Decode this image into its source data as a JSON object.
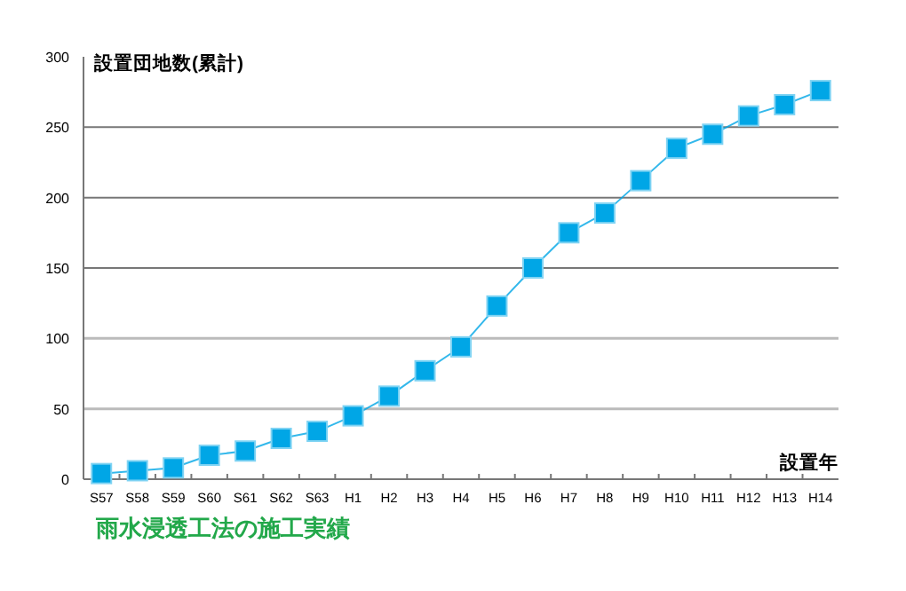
{
  "chart_data": {
    "type": "line",
    "title": "雨水浸透工法の施工実績",
    "xlabel": "設置年",
    "ylabel": "設置団地数(累計)",
    "categories": [
      "S57",
      "S58",
      "S59",
      "S60",
      "S61",
      "S62",
      "S63",
      "H1",
      "H2",
      "H3",
      "H4",
      "H5",
      "H6",
      "H7",
      "H8",
      "H9",
      "H10",
      "H11",
      "H12",
      "H13",
      "H14"
    ],
    "series": [
      {
        "color": "#00a6e6",
        "values": [
          4,
          6,
          8,
          17,
          20,
          29,
          34,
          45,
          59,
          77,
          94,
          123,
          150,
          175,
          189,
          212,
          235,
          245,
          258,
          266,
          276
        ]
      }
    ],
    "ylim": [
      0,
      300
    ],
    "yticks": [
      0,
      50,
      100,
      150,
      200,
      250,
      300
    ],
    "grid": "y",
    "marker": "square",
    "line_style": "solid"
  }
}
